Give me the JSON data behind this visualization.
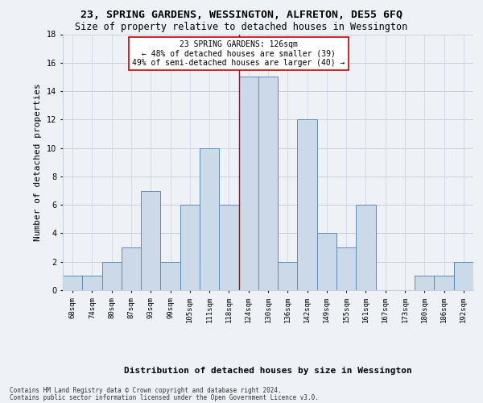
{
  "title1": "23, SPRING GARDENS, WESSINGTON, ALFRETON, DE55 6FQ",
  "title2": "Size of property relative to detached houses in Wessington",
  "xlabel": "Distribution of detached houses by size in Wessington",
  "ylabel": "Number of detached properties",
  "footer1": "Contains HM Land Registry data © Crown copyright and database right 2024.",
  "footer2": "Contains public sector information licensed under the Open Government Licence v3.0.",
  "annotation_line1": "23 SPRING GARDENS: 126sqm",
  "annotation_line2": "← 48% of detached houses are smaller (39)",
  "annotation_line3": "49% of semi-detached houses are larger (40) →",
  "bar_labels": [
    "68sqm",
    "74sqm",
    "80sqm",
    "87sqm",
    "93sqm",
    "99sqm",
    "105sqm",
    "111sqm",
    "118sqm",
    "124sqm",
    "130sqm",
    "136sqm",
    "142sqm",
    "149sqm",
    "155sqm",
    "161sqm",
    "167sqm",
    "173sqm",
    "180sqm",
    "186sqm",
    "192sqm"
  ],
  "bar_values": [
    1,
    1,
    2,
    3,
    7,
    2,
    6,
    10,
    6,
    15,
    15,
    2,
    12,
    4,
    3,
    6,
    0,
    0,
    1,
    1,
    2
  ],
  "bar_color": "#ccd9e8",
  "bar_edge_color": "#5b8db8",
  "grid_color": "#c8d0dc",
  "background_color": "#eef2f7",
  "vline_color": "#cc0000",
  "vline_x": 9.0,
  "ylim": [
    0,
    18
  ],
  "yticks": [
    0,
    2,
    4,
    6,
    8,
    10,
    12,
    14,
    16,
    18
  ],
  "annotation_box_facecolor": "#ffffff",
  "annotation_box_edgecolor": "#cc0000",
  "title_fontsize": 9.5,
  "subtitle_fontsize": 8.5,
  "tick_fontsize": 6.5,
  "ylabel_fontsize": 8,
  "xlabel_fontsize": 8,
  "footer_fontsize": 5.5,
  "annotation_fontsize": 7
}
